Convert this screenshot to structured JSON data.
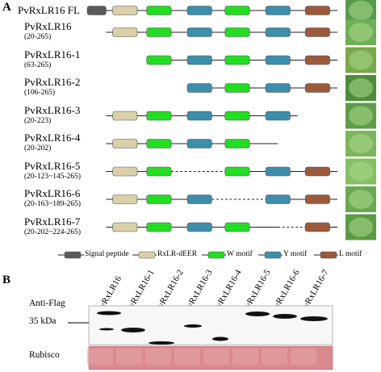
{
  "panel_a": {
    "letter": "A",
    "constructs": [
      {
        "name": "PvRxLR16 FL",
        "range": "",
        "inline": true,
        "leaf_color": "#5a9a4a",
        "segments": [
          {
            "t": "line",
            "a": 0,
            "b": 265
          },
          {
            "t": "box",
            "d": "sp",
            "a": 0,
            "b": 20
          },
          {
            "t": "box",
            "d": "rx",
            "a": 27,
            "b": 53
          },
          {
            "t": "box",
            "d": "w",
            "a": 63,
            "b": 89
          },
          {
            "t": "box",
            "d": "y",
            "a": 106,
            "b": 132
          },
          {
            "t": "box",
            "d": "w",
            "a": 146,
            "b": 172
          },
          {
            "t": "box",
            "d": "y",
            "a": 189,
            "b": 215
          },
          {
            "t": "box",
            "d": "l",
            "a": 231,
            "b": 257
          }
        ]
      },
      {
        "name": "PvRxLR16",
        "range": "(20-265)",
        "leaf_color": "#6fae55",
        "segments": [
          {
            "t": "line",
            "a": 20,
            "b": 265
          },
          {
            "t": "box",
            "d": "rx",
            "a": 27,
            "b": 53
          },
          {
            "t": "box",
            "d": "w",
            "a": 63,
            "b": 89
          },
          {
            "t": "box",
            "d": "y",
            "a": 106,
            "b": 132
          },
          {
            "t": "box",
            "d": "w",
            "a": 146,
            "b": 172
          },
          {
            "t": "box",
            "d": "y",
            "a": 189,
            "b": 215
          },
          {
            "t": "box",
            "d": "l",
            "a": 231,
            "b": 257
          }
        ]
      },
      {
        "name": "PvRxLR16-1",
        "range": "(63-265)",
        "leaf_color": "#7aa84a",
        "segments": [
          {
            "t": "line",
            "a": 63,
            "b": 265
          },
          {
            "t": "box",
            "d": "w",
            "a": 63,
            "b": 89
          },
          {
            "t": "box",
            "d": "y",
            "a": 106,
            "b": 132
          },
          {
            "t": "box",
            "d": "w",
            "a": 146,
            "b": 172
          },
          {
            "t": "box",
            "d": "y",
            "a": 189,
            "b": 215
          },
          {
            "t": "box",
            "d": "l",
            "a": 231,
            "b": 257
          }
        ]
      },
      {
        "name": "PvRxLR16-2",
        "range": "(106-265)",
        "leaf_color": "#4f8c3a",
        "segments": [
          {
            "t": "line",
            "a": 106,
            "b": 265
          },
          {
            "t": "box",
            "d": "y",
            "a": 106,
            "b": 132
          },
          {
            "t": "box",
            "d": "w",
            "a": 146,
            "b": 172
          },
          {
            "t": "box",
            "d": "y",
            "a": 189,
            "b": 215
          },
          {
            "t": "box",
            "d": "l",
            "a": 231,
            "b": 257
          }
        ]
      },
      {
        "name": "PvRxLR16-3",
        "range": "(20-223)",
        "leaf_color": "#5f9c48",
        "segments": [
          {
            "t": "line",
            "a": 20,
            "b": 223
          },
          {
            "t": "box",
            "d": "rx",
            "a": 27,
            "b": 53
          },
          {
            "t": "box",
            "d": "w",
            "a": 63,
            "b": 89
          },
          {
            "t": "box",
            "d": "y",
            "a": 106,
            "b": 132
          },
          {
            "t": "box",
            "d": "w",
            "a": 146,
            "b": 172
          },
          {
            "t": "box",
            "d": "y",
            "a": 189,
            "b": 215
          }
        ]
      },
      {
        "name": "PvRxLR16-4",
        "range": "(20-202)",
        "leaf_color": "#7eb45c",
        "segments": [
          {
            "t": "line",
            "a": 20,
            "b": 202
          },
          {
            "t": "box",
            "d": "rx",
            "a": 27,
            "b": 53
          },
          {
            "t": "box",
            "d": "w",
            "a": 63,
            "b": 89
          },
          {
            "t": "box",
            "d": "y",
            "a": 106,
            "b": 132
          },
          {
            "t": "box",
            "d": "w",
            "a": 146,
            "b": 172
          }
        ]
      },
      {
        "name": "PvRxLR16-5",
        "range": "(20-123~145-265)",
        "leaf_color": "#86bf64",
        "segments": [
          {
            "t": "line",
            "a": 20,
            "b": 89
          },
          {
            "t": "dash",
            "a": 89,
            "b": 146
          },
          {
            "t": "line",
            "a": 172,
            "b": 265
          },
          {
            "t": "box",
            "d": "rx",
            "a": 27,
            "b": 53
          },
          {
            "t": "box",
            "d": "w",
            "a": 63,
            "b": 89
          },
          {
            "t": "box",
            "d": "w",
            "a": 146,
            "b": 172
          },
          {
            "t": "box",
            "d": "y",
            "a": 189,
            "b": 215
          },
          {
            "t": "box",
            "d": "l",
            "a": 231,
            "b": 257
          }
        ]
      },
      {
        "name": "PvRxLR16-6",
        "range": "(20-163~189-265)",
        "leaf_color": "#6aa852",
        "segments": [
          {
            "t": "line",
            "a": 20,
            "b": 132
          },
          {
            "t": "dash",
            "a": 132,
            "b": 189
          },
          {
            "t": "line",
            "a": 215,
            "b": 265
          },
          {
            "t": "box",
            "d": "rx",
            "a": 27,
            "b": 53
          },
          {
            "t": "box",
            "d": "w",
            "a": 63,
            "b": 89
          },
          {
            "t": "box",
            "d": "y",
            "a": 106,
            "b": 132
          },
          {
            "t": "box",
            "d": "y",
            "a": 189,
            "b": 215
          },
          {
            "t": "box",
            "d": "l",
            "a": 231,
            "b": 257
          }
        ]
      },
      {
        "name": "PvRxLR16-7",
        "range": "(20-202~224-265)",
        "leaf_color": "#5d9a45",
        "segments": [
          {
            "t": "line",
            "a": 20,
            "b": 172
          },
          {
            "t": "line",
            "a": 172,
            "b": 202
          },
          {
            "t": "dash",
            "a": 202,
            "b": 231
          },
          {
            "t": "line",
            "a": 257,
            "b": 265
          },
          {
            "t": "box",
            "d": "rx",
            "a": 27,
            "b": 53
          },
          {
            "t": "box",
            "d": "w",
            "a": 63,
            "b": 89
          },
          {
            "t": "box",
            "d": "y",
            "a": 106,
            "b": 132
          },
          {
            "t": "box",
            "d": "w",
            "a": 146,
            "b": 172
          },
          {
            "t": "box",
            "d": "l",
            "a": 231,
            "b": 257
          }
        ]
      }
    ],
    "legend": [
      {
        "key": "sp",
        "label": "Signal peptide"
      },
      {
        "key": "rx",
        "label": "RxLR-dEER"
      },
      {
        "key": "w",
        "label": "W motif"
      },
      {
        "key": "y",
        "label": "Y motif"
      },
      {
        "key": "l",
        "label": "L motif"
      }
    ],
    "domain_colors": {
      "sp": "#5a5a5a",
      "rx": "#d9cfa8",
      "w": "#22dd22",
      "y": "#3d8eab",
      "l": "#9c5a3c"
    }
  },
  "panel_b": {
    "letter": "B",
    "lanes": [
      "PvRxLR16",
      "PvRxLR16-1",
      "PvRxLR16-2",
      "PvRxLR16-3",
      "PvRxLR16-4",
      "PvRxLR16-5",
      "PvRxLR16-6",
      "PvRxLR16-7"
    ],
    "antibody_label": "Anti-Flag",
    "marker_label": "35 kDa",
    "loading_label": "Rubisco",
    "rubisco_color": "#d98a8f"
  }
}
